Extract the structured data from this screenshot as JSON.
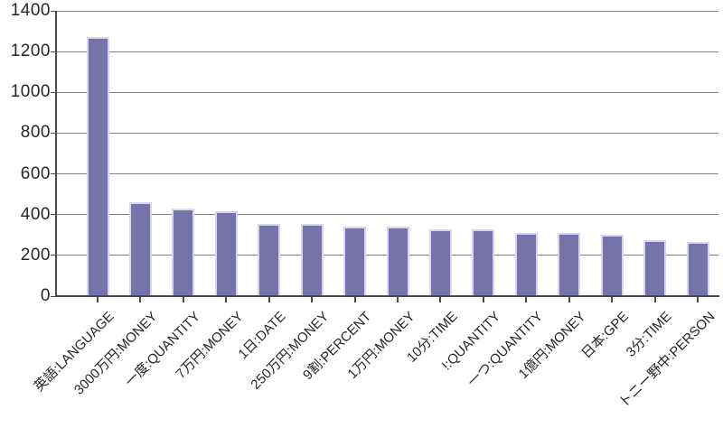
{
  "chart_data": {
    "type": "bar",
    "title": "",
    "xlabel": "",
    "ylabel": "",
    "categories": [
      "英語:LANGUAGE",
      "3000万円:MONEY",
      "一度:QUANTITY",
      "7万円:MONEY",
      "1日:DATE",
      "250万円:MONEY",
      "9割:PERCENT",
      "1万円:MONEY",
      "10分:TIME",
      "!:QUANTITY",
      "一つ:QUANTITY",
      "1億円:MONEY",
      "日本:GPE",
      "3分:TIME",
      "トニー野中:PERSON"
    ],
    "values": [
      1270,
      460,
      430,
      415,
      355,
      355,
      340,
      340,
      330,
      330,
      310,
      310,
      300,
      275,
      265
    ],
    "ylim": [
      0,
      1400
    ],
    "y_ticks": [
      0,
      200,
      400,
      600,
      800,
      1000,
      1200,
      1400
    ],
    "grid": true,
    "legend": false,
    "x_label_rotation_deg": 45,
    "colors": {
      "bar_fill": "#7672AB",
      "bar_border": "#D9D6EC",
      "gridline": "#848484",
      "axis": "#4A4A4A",
      "text": "#262626",
      "background": "#FFFFFF"
    }
  }
}
